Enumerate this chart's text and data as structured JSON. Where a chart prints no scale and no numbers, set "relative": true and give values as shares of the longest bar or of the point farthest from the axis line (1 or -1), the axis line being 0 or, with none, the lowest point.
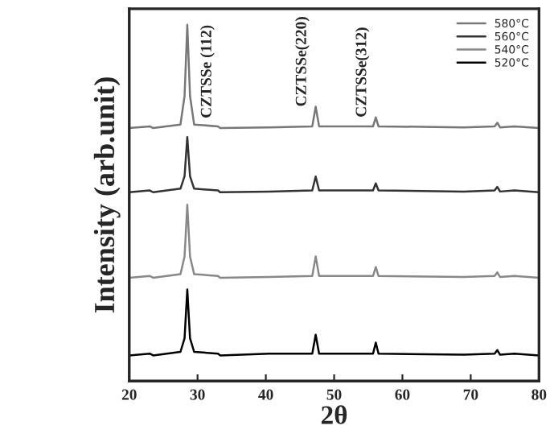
{
  "chart_data": {
    "type": "line",
    "relative": true,
    "xlabel": "2θ",
    "ylabel": "Intensity (arb.unit)",
    "x": [
      20,
      23,
      23.5,
      27.5,
      28.1,
      28.5,
      28.9,
      29.5,
      33,
      33.3,
      40.5,
      46.8,
      47.3,
      47.8,
      55.7,
      56.1,
      56.5,
      69,
      73.5,
      73.9,
      74.3,
      76.4,
      80
    ],
    "series": [
      {
        "name": "580°C",
        "color": "#777777",
        "values": [
          0.71,
          0.715,
          0.71,
          0.72,
          0.8,
          1.0,
          0.8,
          0.72,
          0.715,
          0.71,
          0.712,
          0.715,
          0.77,
          0.715,
          0.715,
          0.74,
          0.715,
          0.712,
          0.715,
          0.725,
          0.712,
          0.715,
          0.71
        ]
      },
      {
        "name": "560°C",
        "color": "#333333",
        "values": [
          0.53,
          0.535,
          0.53,
          0.54,
          0.575,
          0.685,
          0.575,
          0.54,
          0.535,
          0.53,
          0.532,
          0.535,
          0.574,
          0.535,
          0.535,
          0.555,
          0.535,
          0.532,
          0.535,
          0.545,
          0.532,
          0.535,
          0.53
        ]
      },
      {
        "name": "540°C",
        "color": "#888888",
        "values": [
          0.29,
          0.295,
          0.29,
          0.3,
          0.35,
          0.495,
          0.35,
          0.3,
          0.295,
          0.29,
          0.292,
          0.295,
          0.35,
          0.295,
          0.295,
          0.32,
          0.295,
          0.292,
          0.295,
          0.305,
          0.292,
          0.295,
          0.29
        ]
      },
      {
        "name": "520°C",
        "color": "#000000",
        "values": [
          0.072,
          0.077,
          0.072,
          0.082,
          0.12,
          0.257,
          0.12,
          0.082,
          0.077,
          0.072,
          0.077,
          0.077,
          0.13,
          0.077,
          0.077,
          0.108,
          0.077,
          0.074,
          0.077,
          0.087,
          0.074,
          0.077,
          0.072
        ]
      }
    ],
    "xlim": [
      20,
      80
    ],
    "xticks": [
      20,
      30,
      40,
      50,
      60,
      70,
      80
    ],
    "annotations": [
      {
        "text": "CZTSSe (112)",
        "x": 28.5,
        "y": 1.0
      },
      {
        "text": "CZTSSe(220)",
        "x": 47.3,
        "y": 0.77
      },
      {
        "text": "CZTSSe(312)",
        "x": 56.1,
        "y": 0.74
      }
    ],
    "legend": "top right",
    "grid": false
  }
}
